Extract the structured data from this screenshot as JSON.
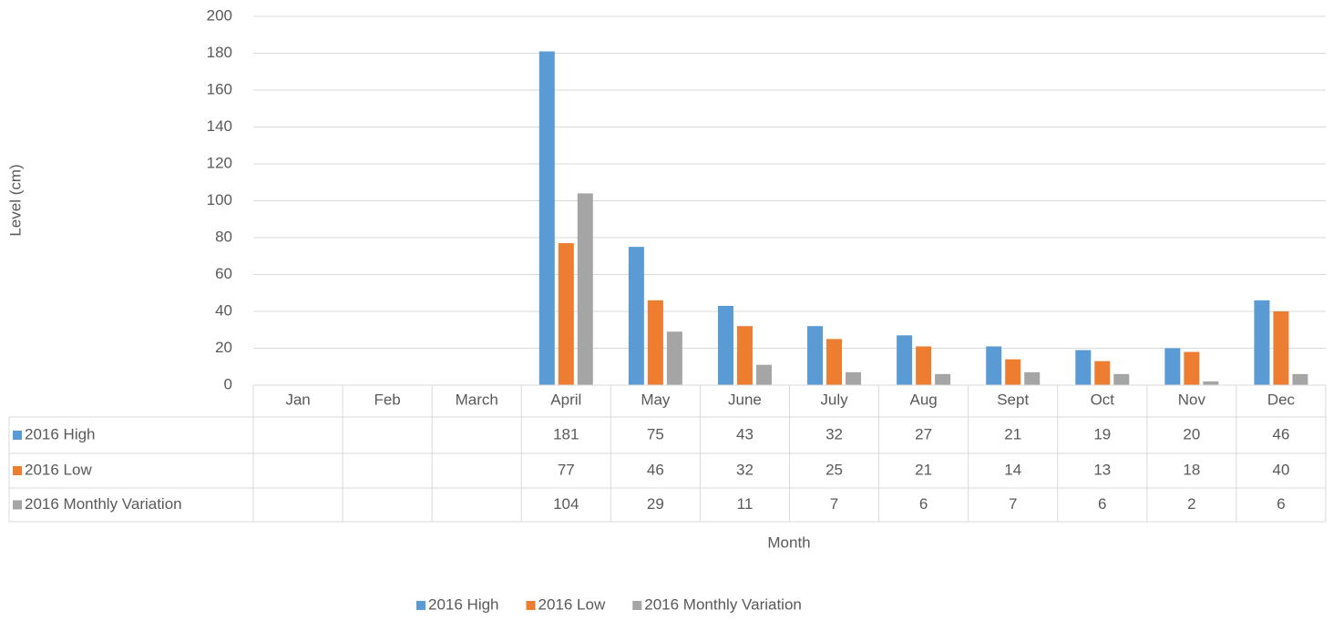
{
  "chart_data": {
    "type": "bar",
    "categories": [
      "Jan",
      "Feb",
      "March",
      "April",
      "May",
      "June",
      "July",
      "Aug",
      "Sept",
      "Oct",
      "Nov",
      "Dec"
    ],
    "series": [
      {
        "name": "2016 High",
        "color": "#5b9bd5",
        "values": [
          null,
          null,
          null,
          181,
          75,
          43,
          32,
          27,
          21,
          19,
          20,
          46
        ]
      },
      {
        "name": "2016 Low",
        "color": "#ed7d31",
        "values": [
          null,
          null,
          null,
          77,
          46,
          32,
          25,
          21,
          14,
          13,
          18,
          40
        ]
      },
      {
        "name": "2016 Monthly Variation",
        "color": "#a5a5a5",
        "values": [
          null,
          null,
          null,
          104,
          29,
          11,
          7,
          6,
          7,
          6,
          2,
          6
        ]
      }
    ],
    "ylabel": "Level (cm)",
    "xlabel": "Month",
    "ylim": [
      0,
      200
    ],
    "yticks": [
      0,
      20,
      40,
      60,
      80,
      100,
      120,
      140,
      160,
      180,
      200
    ],
    "grid": true,
    "legend": "bottom",
    "data_table": true
  }
}
